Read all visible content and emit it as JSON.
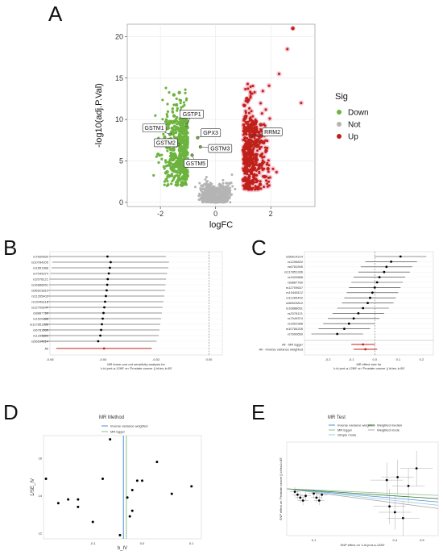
{
  "figure": {
    "panels": [
      "A",
      "B",
      "C",
      "D",
      "E"
    ]
  },
  "colors": {
    "down": "#6db33f",
    "not": "#b4b4b4",
    "up": "#c0201a",
    "up_halo": "#f7c6d2",
    "grid_bg": "#ffffff",
    "ivw": "#4a90d9",
    "egger": "#8fbf8f",
    "median": "#2e7d32",
    "simple": "#9ecae1"
  },
  "panelA": {
    "xlabel": "logFC",
    "ylabel": "-log10(adj.P.Val)",
    "xticks": [
      "-2",
      "0",
      "2"
    ],
    "yticks": [
      "0",
      "5",
      "10",
      "15",
      "20"
    ],
    "legend": {
      "title": "Sig",
      "items": [
        {
          "label": "Down",
          "color": "#6db33f"
        },
        {
          "label": "Not",
          "color": "#b4b4b4"
        },
        {
          "label": "Up",
          "color": "#c0201a"
        }
      ]
    },
    "genes": [
      {
        "name": "GSTP1",
        "x": -1.05,
        "y": 9.3
      },
      {
        "name": "GSTM1",
        "x": -1.65,
        "y": 8.2
      },
      {
        "name": "GPX3",
        "x": -0.65,
        "y": 7.8
      },
      {
        "name": "GSTM2",
        "x": -1.35,
        "y": 7.0
      },
      {
        "name": "GSTM3",
        "x": -0.55,
        "y": 6.7
      },
      {
        "name": "GSTM5",
        "x": -0.85,
        "y": 5.7
      },
      {
        "name": "RRM2",
        "x": 1.35,
        "y": 8.1
      }
    ]
  },
  "chart_data": [
    {
      "type": "scatter",
      "title": "",
      "xlabel": "logFC",
      "ylabel": "-log10(adj.P.Val)",
      "xlim": [
        -3.2,
        3.6
      ],
      "ylim": [
        -0.5,
        21.5
      ],
      "series": [
        {
          "name": "Down"
        },
        {
          "name": "Not"
        },
        {
          "name": "Up"
        }
      ]
    },
    {
      "type": "scatter",
      "xlim": [
        -0.06,
        0.005
      ],
      "xticks": [
        "-0.06",
        "-0.04",
        "-0.02",
        "0.00"
      ],
      "xlabel": "MR leave-one-out sensitivity analysis for\n'c.id.prot-a-1289' on 'Prostate cancer || id:ieu-b-85'",
      "snps": [
        "rs7600650",
        "rs10784205",
        "rs1851988",
        "rs7049374",
        "rs2078121",
        "rs16888651",
        "rs56523810",
        "rs11265402",
        "rs10448112",
        "rs12709647",
        "rs8887760",
        "rs1520888",
        "rs117851336",
        "rs6781595",
        "rs1295820",
        "rs56614214",
        "All"
      ],
      "estimates": [
        -0.0383,
        -0.0371,
        -0.0374,
        -0.0378,
        -0.0382,
        -0.0384,
        -0.0386,
        -0.0389,
        -0.0392,
        -0.0395,
        -0.0398,
        -0.0401,
        -0.0404,
        -0.0407,
        -0.041,
        -0.0418,
        -0.0396
      ]
    },
    {
      "type": "scatter",
      "xlim": [
        -0.3,
        0.25
      ],
      "xticks": [
        "-0.2",
        "-0.1",
        "0.0",
        "0.1",
        "0.2"
      ],
      "xlabel": "MR effect size for\n'c.id.prot-a-1289' on 'Prostate cancer || id:ieu-b-85'",
      "snps": [
        "rs56614214",
        "rs1295820",
        "rs6781595",
        "rs117851336",
        "rs1520888",
        "rs8887760",
        "rs12709647",
        "rs10448112",
        "rs11265402",
        "rs56523810",
        "rs16888651",
        "rs2078121",
        "rs7049374",
        "rs1851988",
        "rs10784205",
        "rs7600650",
        "All - MR Egger",
        "All - Inverse variance weighted"
      ],
      "estimates": [
        0.11,
        0.07,
        0.05,
        0.04,
        0.02,
        0.01,
        0.0,
        -0.01,
        -0.02,
        -0.03,
        -0.05,
        -0.07,
        -0.09,
        -0.11,
        -0.13,
        -0.16,
        -0.05,
        -0.04
      ]
    },
    {
      "type": "scatter",
      "legend_title": "MR Method",
      "legend": [
        "Inverse variance weighted",
        "MR Egger"
      ],
      "xlabel": "b_IV",
      "ylabel": "1/SE_IV",
      "xticks": [
        "-0.1",
        "0.0",
        "0.1"
      ],
      "yticks": [
        "12",
        "14",
        "16"
      ],
      "xlim": [
        -0.2,
        0.12
      ],
      "ylim": [
        11.7,
        17.2
      ],
      "x": [
        -0.195,
        -0.17,
        -0.15,
        -0.13,
        -0.13,
        -0.1,
        -0.08,
        -0.065,
        -0.045,
        -0.03,
        -0.025,
        -0.02,
        -0.02,
        -0.01,
        0.0,
        0.03,
        0.06,
        0.1
      ],
      "y": [
        14.9,
        13.6,
        13.8,
        13.4,
        13.8,
        12.6,
        14.9,
        17.0,
        11.9,
        13.9,
        12.9,
        13.2,
        14.3,
        14.8,
        14.8,
        15.8,
        14.1,
        14.5
      ]
    },
    {
      "type": "scatter",
      "legend_title": "MR Test",
      "legend": [
        "Inverse variance weighted",
        "MR Egger",
        "Simple mode",
        "Weighted median",
        "Weighted mode"
      ],
      "xlabel": "SNP effect on 'c.id.prot-a-1289'",
      "ylabel": "SNP effect on 'Prostate cancer || id:ieu-b-85'",
      "xticks": [
        "0.1",
        "0.4",
        "0.5"
      ],
      "x": [
        0.03,
        0.04,
        0.05,
        0.06,
        0.07,
        0.1,
        0.11,
        0.12,
        0.13,
        0.37,
        0.38,
        0.4,
        0.41,
        0.43,
        0.45,
        0.48
      ],
      "y": [
        -0.005,
        -0.01,
        -0.015,
        -0.02,
        -0.012,
        -0.008,
        -0.015,
        -0.02,
        -0.01,
        0.015,
        -0.03,
        -0.04,
        0.02,
        -0.05,
        0.005,
        0.035
      ]
    }
  ]
}
